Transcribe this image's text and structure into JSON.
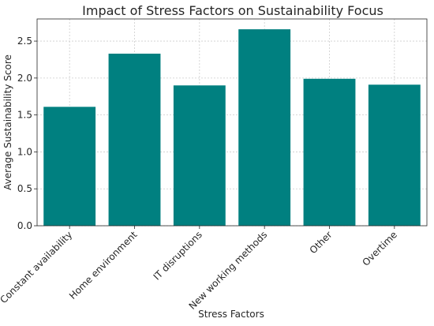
{
  "chart_data": {
    "type": "bar",
    "title": "Impact of Stress Factors on Sustainability Focus",
    "xlabel": "Stress Factors",
    "ylabel": "Average Sustainability Score",
    "categories": [
      "Constant availability",
      "Home environment",
      "IT disruptions",
      "New working methods",
      "Other",
      "Overtime"
    ],
    "values": [
      1.61,
      2.33,
      1.9,
      2.66,
      1.99,
      1.91
    ],
    "yticks": [
      "0.0",
      "0.5",
      "1.0",
      "1.5",
      "2.0",
      "2.5"
    ],
    "ylim": [
      0,
      2.8
    ],
    "grid": true,
    "bar_color": "#008080"
  }
}
